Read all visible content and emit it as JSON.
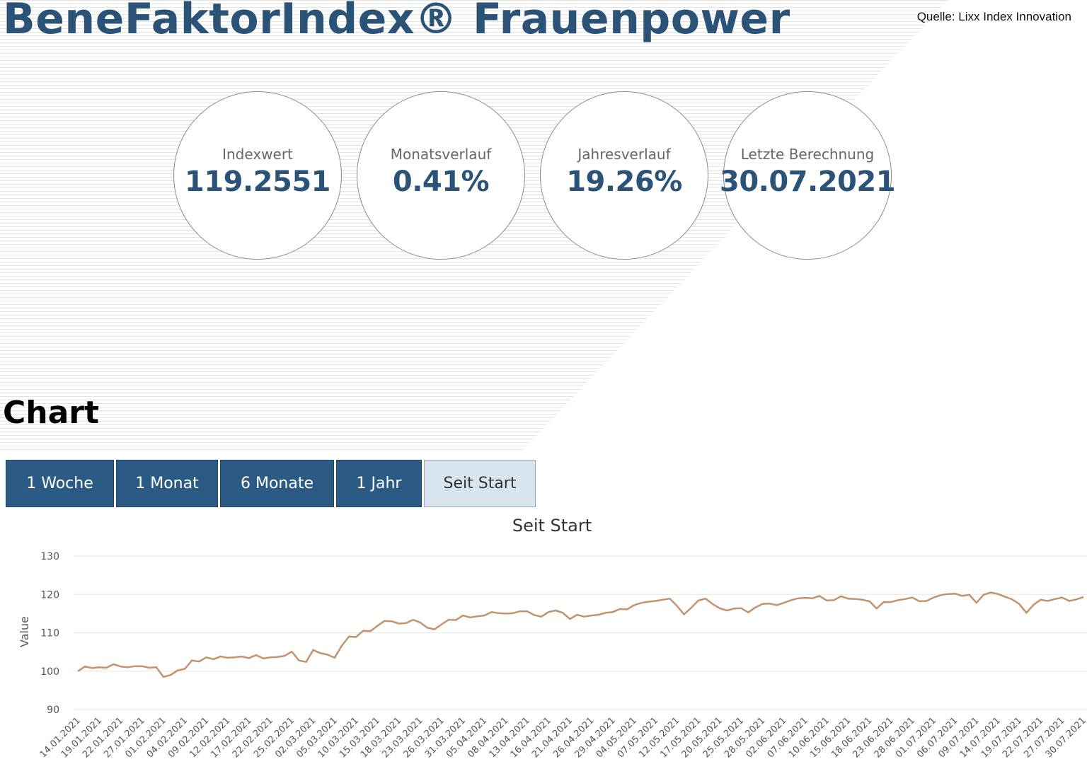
{
  "header": {
    "title": "BeneFaktorIndex® Frauenpower",
    "source": "Quelle: Lixx Index Innovation"
  },
  "kpis": [
    {
      "label": "Indexwert",
      "value": "119.2551"
    },
    {
      "label": "Monatsverlauf",
      "value": "0.41%"
    },
    {
      "label": "Jahresverlauf",
      "value": "19.26%"
    },
    {
      "label": "Letzte Berechnung",
      "value": "30.07.2021"
    }
  ],
  "section": {
    "title": "Chart"
  },
  "tabs": [
    {
      "label": "1 Woche",
      "active": false
    },
    {
      "label": "1 Monat",
      "active": false
    },
    {
      "label": "6 Monate",
      "active": false
    },
    {
      "label": "1 Jahr",
      "active": false
    },
    {
      "label": "Seit Start",
      "active": true
    }
  ],
  "colors": {
    "brand": "#2b5378",
    "tab": "#2b5b85",
    "tab_active": "#d8e4ee",
    "line": "#c4926c",
    "grid": "#e6e6e6"
  },
  "chart_data": {
    "type": "line",
    "title": "Seit Start",
    "ylabel": "Value",
    "xlabel": "",
    "ylim": [
      90,
      130
    ],
    "yticks": [
      90,
      100,
      110,
      120,
      130
    ],
    "grid": true,
    "x_tick_labels": [
      "14.01.2021",
      "19.01.2021",
      "22.01.2021",
      "27.01.2021",
      "01.02.2021",
      "04.02.2021",
      "09.02.2021",
      "12.02.2021",
      "17.02.2021",
      "22.02.2021",
      "25.02.2021",
      "02.03.2021",
      "05.03.2021",
      "10.03.2021",
      "15.03.2021",
      "18.03.2021",
      "23.03.2021",
      "26.03.2021",
      "31.03.2021",
      "05.04.2021",
      "08.04.2021",
      "13.04.2021",
      "16.04.2021",
      "21.04.2021",
      "26.04.2021",
      "29.04.2021",
      "04.05.2021",
      "07.05.2021",
      "12.05.2021",
      "17.05.2021",
      "20.05.2021",
      "25.05.2021",
      "28.05.2021",
      "02.06.2021",
      "07.06.2021",
      "10.06.2021",
      "15.06.2021",
      "18.06.2021",
      "23.06.2021",
      "28.06.2021",
      "01.07.2021",
      "06.07.2021",
      "09.07.2021",
      "14.07.2021",
      "19.07.2021",
      "22.07.2021",
      "27.07.2021",
      "30.07.2021"
    ],
    "series": [
      {
        "values": [
          100.0,
          101.2,
          100.8,
          101.0,
          100.9,
          101.8,
          101.2,
          101.0,
          101.3,
          101.3,
          100.9,
          101.0,
          98.5,
          99.0,
          100.2,
          100.6,
          102.8,
          102.5,
          103.6,
          103.1,
          103.8,
          103.5,
          103.6,
          103.8,
          103.4,
          104.2,
          103.3,
          103.6,
          103.7,
          104.0,
          105.1,
          102.8,
          102.4,
          105.5,
          104.7,
          104.3,
          103.5,
          106.6,
          109.0,
          108.9,
          110.5,
          110.4,
          111.8,
          113.1,
          113.0,
          112.4,
          112.5,
          113.4,
          112.7,
          111.3,
          110.9,
          112.2,
          113.4,
          113.3,
          114.5,
          114.0,
          114.3,
          114.5,
          115.4,
          115.1,
          115.0,
          115.1,
          115.6,
          115.6,
          114.6,
          114.2,
          115.4,
          115.8,
          115.2,
          113.6,
          114.7,
          114.2,
          114.5,
          114.7,
          115.2,
          115.4,
          116.2,
          116.1,
          117.2,
          117.8,
          118.1,
          118.3,
          118.6,
          118.9,
          117.0,
          114.8,
          116.5,
          118.4,
          118.9,
          117.5,
          116.4,
          115.8,
          116.3,
          116.4,
          115.3,
          116.6,
          117.5,
          117.6,
          117.2,
          117.8,
          118.5,
          119.0,
          119.1,
          119.0,
          119.6,
          118.4,
          118.5,
          119.5,
          118.9,
          118.8,
          118.6,
          118.2,
          116.3,
          118.0,
          118.0,
          118.5,
          118.8,
          119.2,
          118.2,
          118.3,
          119.2,
          119.8,
          120.1,
          120.2,
          119.6,
          119.9,
          117.8,
          119.9,
          120.5,
          120.1,
          119.4,
          118.7,
          117.5,
          115.2,
          117.3,
          118.6,
          118.3,
          118.8,
          119.2,
          118.3,
          118.7,
          119.3
        ]
      }
    ]
  }
}
